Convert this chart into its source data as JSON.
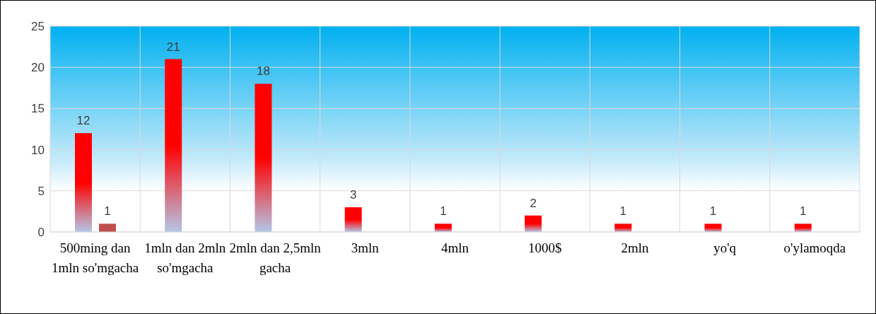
{
  "chart_data": {
    "type": "bar",
    "categories": [
      "500ming dan 1mln so'mgacha",
      "1mln dan 2mln so'mgacha",
      "2mln dan 2,5mln gacha",
      "3mln",
      "4mln",
      "1000$",
      "2mln",
      "yo'q",
      "o'ylamoqda"
    ],
    "series": [
      {
        "color": "#ff0000",
        "values": [
          12,
          21,
          18,
          3,
          1,
          2,
          1,
          1,
          1
        ]
      },
      {
        "color": "#c0504d",
        "values": [
          1,
          null,
          null,
          null,
          null,
          null,
          null,
          null,
          null
        ]
      }
    ],
    "ylim": [
      0,
      25
    ],
    "yticks": [
      0,
      5,
      10,
      15,
      20,
      25
    ],
    "grid": true,
    "data_labels": true
  }
}
